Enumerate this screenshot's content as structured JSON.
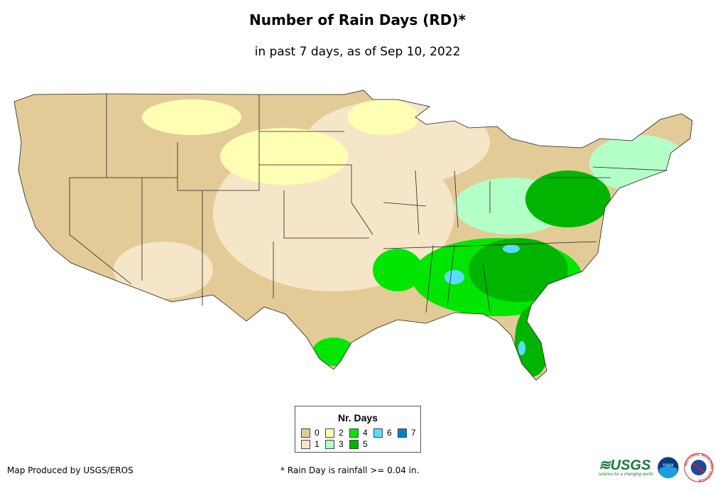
{
  "title": "Number of Rain Days (RD)*",
  "subtitle": "in past 7 days, as of Sep 10, 2022",
  "legend": {
    "title": "Nr. Days",
    "items": [
      {
        "label": "0",
        "color": "#e3cb98"
      },
      {
        "label": "1",
        "color": "#f6e6c8"
      },
      {
        "label": "2",
        "color": "#ffffb4"
      },
      {
        "label": "3",
        "color": "#b4ffc8"
      },
      {
        "label": "4",
        "color": "#00e600"
      },
      {
        "label": "5",
        "color": "#00b400"
      },
      {
        "label": "6",
        "color": "#5adcff"
      },
      {
        "label": "7",
        "color": "#0082c8"
      }
    ]
  },
  "footer": {
    "producer": "Map Produced by USGS/EROS",
    "note": "* Rain Day is rainfall >= 0.04 in."
  },
  "logos": {
    "usgs": "USGS",
    "usgs_tagline": "science for a changing world",
    "noaa": "noaa",
    "nws": "NATIONAL WEATHER SERVICE"
  }
}
